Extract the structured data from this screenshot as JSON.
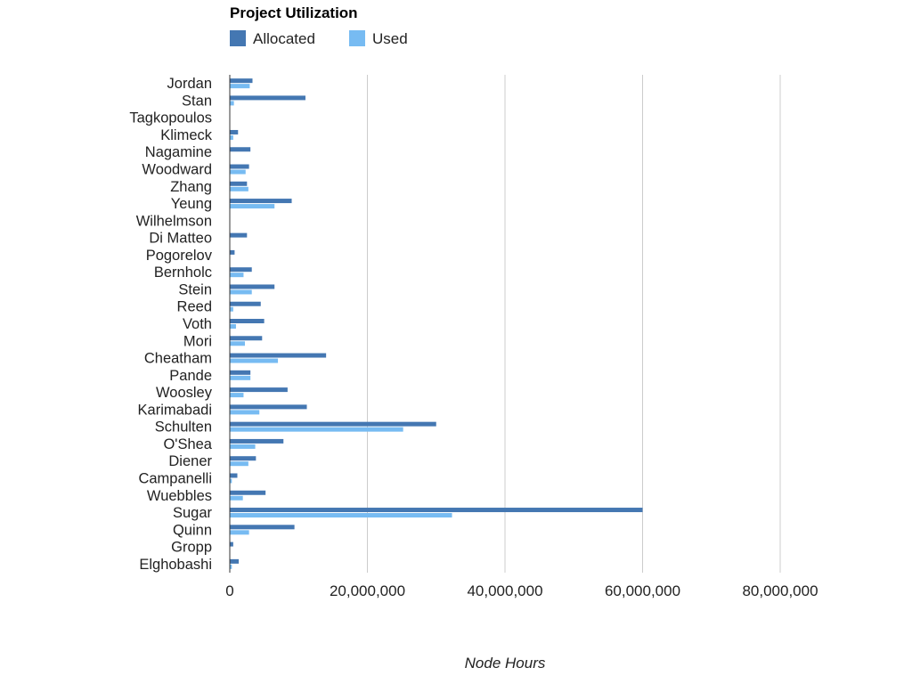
{
  "chart_data": {
    "type": "bar",
    "orientation": "horizontal",
    "title": "Project Utilization",
    "xlabel": "Node Hours",
    "ylabel": "",
    "xlim": [
      0,
      80000000
    ],
    "xticks": [
      0,
      20000000,
      40000000,
      60000000,
      80000000
    ],
    "xtick_labels": [
      "0",
      "20,000,000",
      "40,000,000",
      "60,000,000",
      "80,000,000"
    ],
    "grid": true,
    "legend_position": "top-left",
    "categories": [
      "Jordan",
      "Stan",
      "Tagkopoulos",
      "Klimeck",
      "Nagamine",
      "Woodward",
      "Zhang",
      "Yeung",
      "Wilhelmson",
      "Di Matteo",
      "Pogorelov",
      "Bernholc",
      "Stein",
      "Reed",
      "Voth",
      "Mori",
      "Cheatham",
      "Pande",
      "Woosley",
      "Karimabadi",
      "Schulten",
      "O'Shea",
      "Diener",
      "Campanelli",
      "Wuebbles",
      "Sugar",
      "Quinn",
      "Gropp",
      "Elghobashi"
    ],
    "series": [
      {
        "name": "Allocated",
        "color": "#4477b2",
        "values": [
          3300000,
          11000000,
          0,
          1200000,
          3000000,
          2800000,
          2500000,
          9000000,
          0,
          2500000,
          700000,
          3200000,
          6500000,
          4500000,
          5000000,
          4700000,
          14000000,
          3000000,
          8400000,
          11200000,
          30000000,
          7800000,
          3800000,
          1100000,
          5200000,
          60000000,
          9400000,
          500000,
          1300000
        ]
      },
      {
        "name": "Used",
        "color": "#77bbf2",
        "values": [
          2900000,
          600000,
          0,
          500000,
          0,
          2300000,
          2700000,
          6500000,
          0,
          0,
          0,
          2000000,
          3200000,
          500000,
          900000,
          2200000,
          7000000,
          3000000,
          2000000,
          4300000,
          25200000,
          3700000,
          2700000,
          300000,
          1900000,
          32300000,
          2800000,
          0,
          300000
        ]
      }
    ]
  }
}
